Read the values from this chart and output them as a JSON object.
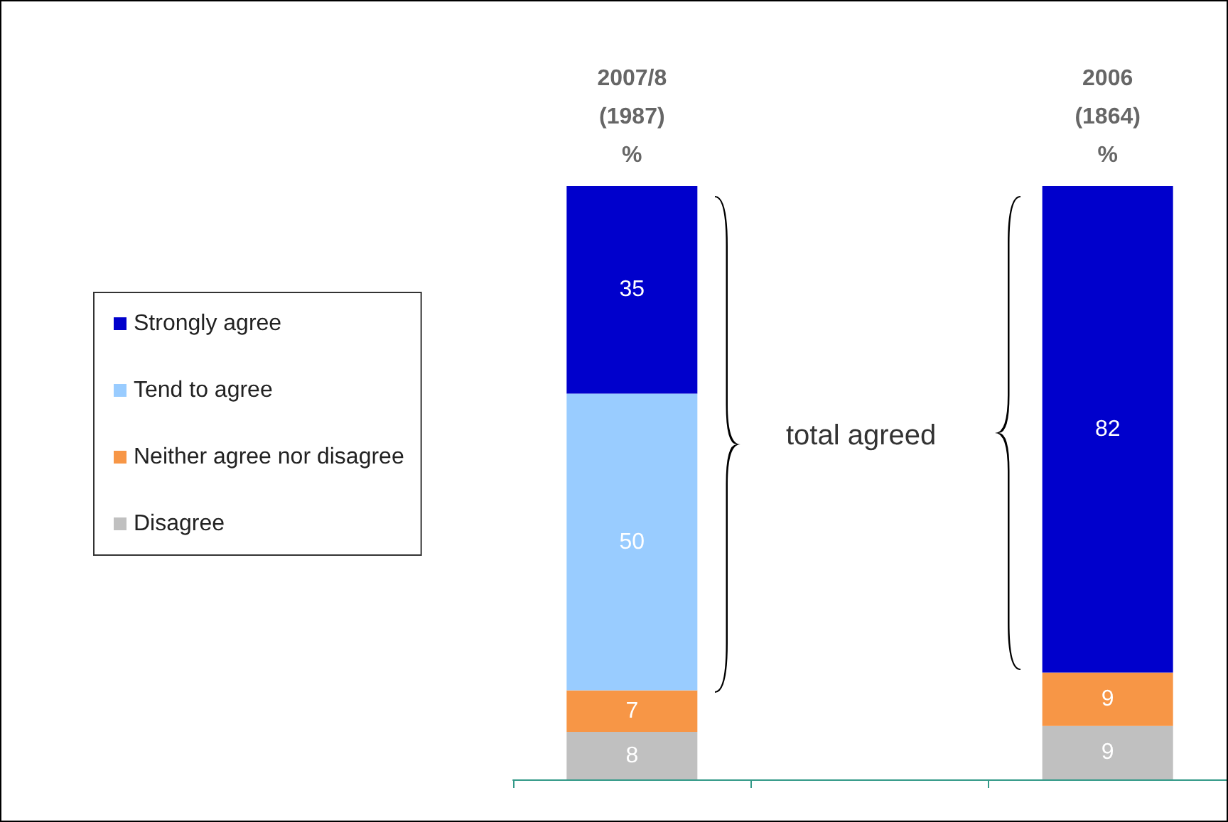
{
  "chart_data": {
    "type": "bar",
    "stacked": true,
    "categories": [
      "2007/8\n(1987)\n%",
      null,
      "2006\n(1864)\n%"
    ],
    "series": [
      {
        "name": "Disagree",
        "color": "#c0c0c0",
        "values": [
          8,
          null,
          9
        ]
      },
      {
        "name": "Neither agree nor disagree",
        "color": "#f79646",
        "values": [
          7,
          null,
          9
        ]
      },
      {
        "name": "Tend to agree",
        "color": "#99ccff",
        "values": [
          50,
          null,
          null
        ]
      },
      {
        "name": "Strongly agree",
        "color": "#0000cc",
        "values": [
          35,
          null,
          82
        ]
      }
    ],
    "data_labels": true,
    "legend": "left",
    "tick_labels": "x",
    "annotations": [
      "total agreed"
    ]
  }
}
